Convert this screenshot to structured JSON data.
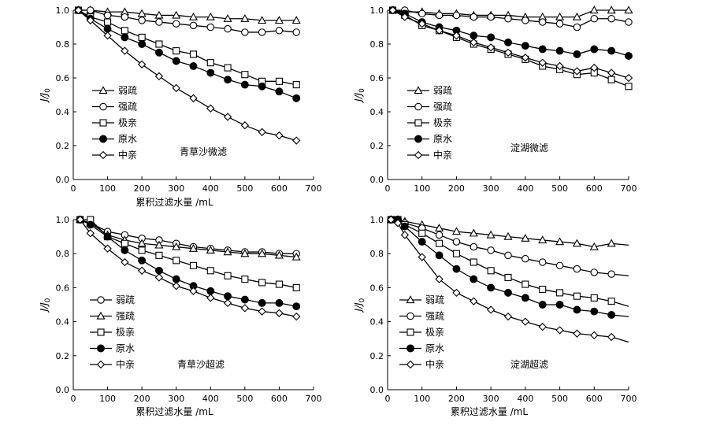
{
  "chart_data": [
    {
      "type": "line",
      "title": "青草沙微滤",
      "xlabel": "累积过滤水量 /mL",
      "ylabel": "J/J0",
      "xlim": [
        0,
        700
      ],
      "ylim": [
        0,
        1.0
      ],
      "xticks": [
        0,
        100,
        200,
        300,
        400,
        500,
        600,
        700
      ],
      "yticks": [
        0,
        0.2,
        0.4,
        0.6,
        0.8,
        1.0
      ],
      "legend": "left",
      "series": [
        {
          "name": "弱疏",
          "marker": "triangle",
          "fill": "open",
          "x": [
            15,
            50,
            100,
            150,
            200,
            250,
            300,
            350,
            400,
            450,
            500,
            550,
            600,
            650
          ],
          "y": [
            1.0,
            1.0,
            0.99,
            0.99,
            0.98,
            0.97,
            0.97,
            0.96,
            0.96,
            0.95,
            0.95,
            0.94,
            0.94,
            0.94
          ]
        },
        {
          "name": "强疏",
          "marker": "circle",
          "fill": "open",
          "x": [
            15,
            50,
            100,
            150,
            200,
            250,
            300,
            350,
            400,
            450,
            500,
            550,
            600,
            650
          ],
          "y": [
            1.0,
            1.0,
            0.97,
            0.96,
            0.94,
            0.93,
            0.92,
            0.91,
            0.9,
            0.89,
            0.87,
            0.87,
            0.88,
            0.87
          ]
        },
        {
          "name": "极亲",
          "marker": "square",
          "fill": "open",
          "x": [
            15,
            50,
            100,
            150,
            200,
            250,
            300,
            350,
            400,
            450,
            500,
            550,
            600,
            650
          ],
          "y": [
            1.0,
            0.96,
            0.93,
            0.88,
            0.84,
            0.8,
            0.76,
            0.74,
            0.69,
            0.66,
            0.62,
            0.58,
            0.58,
            0.56
          ]
        },
        {
          "name": "原水",
          "marker": "circle",
          "fill": "filled",
          "x": [
            15,
            50,
            100,
            150,
            200,
            250,
            300,
            350,
            400,
            450,
            500,
            550,
            600,
            650
          ],
          "y": [
            1.0,
            0.95,
            0.89,
            0.84,
            0.8,
            0.75,
            0.7,
            0.67,
            0.63,
            0.59,
            0.56,
            0.55,
            0.52,
            0.48
          ]
        },
        {
          "name": "中亲",
          "marker": "diamond",
          "fill": "open",
          "x": [
            15,
            50,
            100,
            150,
            200,
            250,
            300,
            350,
            400,
            450,
            500,
            550,
            600,
            650
          ],
          "y": [
            1.0,
            0.94,
            0.85,
            0.76,
            0.68,
            0.61,
            0.54,
            0.48,
            0.42,
            0.37,
            0.32,
            0.28,
            0.26,
            0.23
          ]
        }
      ]
    },
    {
      "type": "line",
      "title": "淀湖微滤",
      "xlabel": "",
      "ylabel": "J/J0",
      "xlim": [
        0,
        700
      ],
      "ylim": [
        0,
        1.0
      ],
      "xticks": [
        0,
        100,
        200,
        300,
        400,
        500,
        600,
        700
      ],
      "yticks": [
        0,
        0.2,
        0.4,
        0.6,
        0.8,
        1.0
      ],
      "legend": "left",
      "series": [
        {
          "name": "弱疏",
          "marker": "triangle",
          "fill": "open",
          "x": [
            15,
            50,
            100,
            150,
            200,
            250,
            300,
            350,
            400,
            450,
            500,
            550,
            600,
            650,
            700
          ],
          "y": [
            1.0,
            0.99,
            0.99,
            0.98,
            0.98,
            0.97,
            0.97,
            0.97,
            0.96,
            0.96,
            0.96,
            0.96,
            1.0,
            1.0,
            1.0
          ]
        },
        {
          "name": "强疏",
          "marker": "circle",
          "fill": "open",
          "x": [
            15,
            50,
            100,
            150,
            200,
            250,
            300,
            350,
            400,
            450,
            500,
            550,
            600,
            650,
            700
          ],
          "y": [
            1.0,
            1.0,
            0.98,
            0.97,
            0.97,
            0.96,
            0.96,
            0.95,
            0.94,
            0.93,
            0.92,
            0.9,
            0.95,
            0.95,
            0.93
          ]
        },
        {
          "name": "极亲",
          "marker": "square",
          "fill": "open",
          "x": [
            15,
            50,
            100,
            150,
            200,
            250,
            300,
            350,
            400,
            450,
            500,
            550,
            600,
            650,
            700
          ],
          "y": [
            1.0,
            0.97,
            0.91,
            0.88,
            0.84,
            0.8,
            0.77,
            0.74,
            0.71,
            0.67,
            0.65,
            0.62,
            0.63,
            0.59,
            0.55
          ]
        },
        {
          "name": "原水",
          "marker": "circle",
          "fill": "filled",
          "x": [
            15,
            50,
            100,
            150,
            200,
            250,
            300,
            350,
            400,
            450,
            500,
            550,
            600,
            650,
            700
          ],
          "y": [
            1.0,
            0.98,
            0.93,
            0.9,
            0.88,
            0.85,
            0.84,
            0.81,
            0.79,
            0.77,
            0.76,
            0.74,
            0.77,
            0.76,
            0.73
          ]
        },
        {
          "name": "中亲",
          "marker": "diamond",
          "fill": "open",
          "x": [
            15,
            50,
            100,
            150,
            200,
            250,
            300,
            350,
            400,
            450,
            500,
            550,
            600,
            650,
            700
          ],
          "y": [
            1.0,
            0.96,
            0.92,
            0.88,
            0.85,
            0.81,
            0.78,
            0.75,
            0.72,
            0.69,
            0.67,
            0.64,
            0.66,
            0.63,
            0.6
          ]
        }
      ]
    },
    {
      "type": "line",
      "title": "青草沙超滤",
      "xlabel": "累积过滤水量 /mL",
      "ylabel": "J/J0",
      "xlim": [
        0,
        700
      ],
      "ylim": [
        0,
        1.0
      ],
      "xticks": [
        0,
        100,
        200,
        300,
        400,
        500,
        600,
        700
      ],
      "yticks": [
        0,
        0.2,
        0.4,
        0.6,
        0.8,
        1.0
      ],
      "legend": "left",
      "series": [
        {
          "name": "弱疏",
          "marker": "circle",
          "fill": "open",
          "x": [
            20,
            50,
            100,
            150,
            200,
            250,
            300,
            350,
            400,
            450,
            500,
            550,
            600,
            650
          ],
          "y": [
            1.0,
            0.98,
            0.93,
            0.91,
            0.89,
            0.88,
            0.86,
            0.84,
            0.83,
            0.82,
            0.81,
            0.81,
            0.8,
            0.8
          ]
        },
        {
          "name": "强疏",
          "marker": "triangle",
          "fill": "open",
          "x": [
            20,
            50,
            100,
            150,
            200,
            250,
            300,
            350,
            400,
            450,
            500,
            550,
            600,
            650
          ],
          "y": [
            1.0,
            0.98,
            0.91,
            0.88,
            0.86,
            0.85,
            0.84,
            0.83,
            0.82,
            0.81,
            0.8,
            0.8,
            0.79,
            0.78
          ]
        },
        {
          "name": "极亲",
          "marker": "square",
          "fill": "open",
          "x": [
            20,
            50,
            100,
            150,
            200,
            250,
            300,
            350,
            400,
            450,
            500,
            550,
            600,
            650
          ],
          "y": [
            1.0,
            1.0,
            0.9,
            0.86,
            0.82,
            0.79,
            0.76,
            0.73,
            0.7,
            0.67,
            0.65,
            0.63,
            0.62,
            0.6
          ]
        },
        {
          "name": "原水",
          "marker": "circle",
          "fill": "filled",
          "x": [
            20,
            50,
            100,
            150,
            200,
            250,
            300,
            350,
            400,
            450,
            500,
            550,
            600,
            650
          ],
          "y": [
            1.0,
            0.97,
            0.9,
            0.82,
            0.76,
            0.7,
            0.65,
            0.61,
            0.58,
            0.55,
            0.53,
            0.51,
            0.51,
            0.49
          ]
        },
        {
          "name": "中亲",
          "marker": "diamond",
          "fill": "open",
          "x": [
            20,
            50,
            100,
            150,
            200,
            250,
            300,
            350,
            400,
            450,
            500,
            550,
            600,
            650
          ],
          "y": [
            1.0,
            0.92,
            0.83,
            0.75,
            0.7,
            0.66,
            0.61,
            0.58,
            0.54,
            0.51,
            0.48,
            0.46,
            0.45,
            0.43
          ]
        }
      ]
    },
    {
      "type": "line",
      "title": "淀湖超滤",
      "xlabel": "累积过滤水量 /mL",
      "ylabel": "J/J0",
      "xlim": [
        0,
        700
      ],
      "ylim": [
        0,
        1.0
      ],
      "xticks": [
        0,
        100,
        200,
        300,
        400,
        500,
        600,
        700
      ],
      "yticks": [
        0,
        0.2,
        0.4,
        0.6,
        0.8,
        1.0
      ],
      "legend": "left",
      "series": [
        {
          "name": "弱疏",
          "marker": "triangle",
          "fill": "open",
          "x": [
            10,
            30,
            50,
            100,
            150,
            200,
            250,
            300,
            350,
            400,
            450,
            500,
            550,
            600,
            650
          ],
          "y": [
            1.0,
            1.0,
            0.99,
            0.97,
            0.95,
            0.93,
            0.92,
            0.91,
            0.9,
            0.89,
            0.88,
            0.87,
            0.86,
            0.84,
            0.86
          ],
          "line_end": [
            800,
            0.85
          ]
        },
        {
          "name": "强疏",
          "marker": "circle",
          "fill": "open",
          "x": [
            10,
            30,
            50,
            100,
            150,
            200,
            250,
            300,
            350,
            400,
            450,
            500,
            550,
            600,
            650
          ],
          "y": [
            1.0,
            1.0,
            0.98,
            0.95,
            0.91,
            0.87,
            0.84,
            0.82,
            0.79,
            0.77,
            0.75,
            0.73,
            0.71,
            0.69,
            0.68
          ],
          "line_end": [
            800,
            0.67
          ]
        },
        {
          "name": "极亲",
          "marker": "square",
          "fill": "open",
          "x": [
            10,
            30,
            50,
            100,
            150,
            200,
            250,
            300,
            350,
            400,
            450,
            500,
            550,
            600,
            650
          ],
          "y": [
            1.0,
            1.0,
            0.97,
            0.92,
            0.86,
            0.8,
            0.75,
            0.7,
            0.66,
            0.62,
            0.59,
            0.57,
            0.55,
            0.54,
            0.52
          ],
          "line_end": [
            800,
            0.49
          ]
        },
        {
          "name": "原水",
          "marker": "circle",
          "fill": "filled",
          "x": [
            10,
            30,
            50,
            100,
            150,
            200,
            250,
            300,
            350,
            400,
            450,
            500,
            550,
            600,
            650
          ],
          "y": [
            1.0,
            1.0,
            0.96,
            0.87,
            0.79,
            0.71,
            0.65,
            0.6,
            0.57,
            0.54,
            0.5,
            0.5,
            0.47,
            0.46,
            0.44
          ],
          "line_end": [
            800,
            0.43
          ]
        },
        {
          "name": "中亲",
          "marker": "diamond",
          "fill": "open",
          "x": [
            10,
            30,
            50,
            100,
            150,
            200,
            250,
            300,
            350,
            400,
            450,
            500,
            550,
            600,
            650
          ],
          "y": [
            1.0,
            0.98,
            0.91,
            0.78,
            0.65,
            0.57,
            0.52,
            0.47,
            0.43,
            0.4,
            0.37,
            0.35,
            0.33,
            0.32,
            0.31
          ],
          "line_end": [
            800,
            0.28
          ]
        }
      ]
    }
  ]
}
